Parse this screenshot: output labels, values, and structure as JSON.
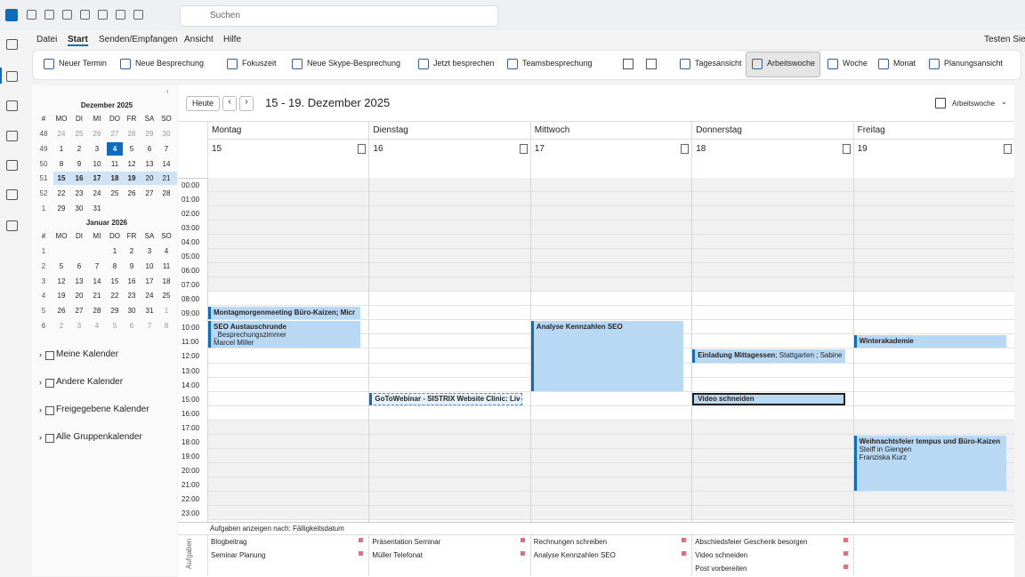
{
  "search": "Suchen",
  "menu": {
    "items": [
      "Datei",
      "Start",
      "Senden/Empfangen",
      "Ansicht",
      "Hilfe"
    ],
    "promo": "Testen Sie d"
  },
  "ribbon": {
    "buttons": [
      "Neuer Termin",
      "Neue Besprechung",
      "Fokuszeit",
      "Neue Skype-Besprechung",
      "Jetzt besprechen",
      "Teamsbesprechung",
      "Tagesansicht",
      "Arbeitswoche",
      "Woche",
      "Monat",
      "Planungsansicht"
    ]
  },
  "mini_calendar": {
    "months": [
      {
        "title": "Dezember 2025",
        "header": [
          "#",
          "MO",
          "DI",
          "MI",
          "DO",
          "FR",
          "SA",
          "SO"
        ],
        "weeks": [
          [
            "48",
            "24",
            "25",
            "26",
            "27",
            "28",
            "29",
            "30"
          ],
          [
            "49",
            "1",
            "2",
            "3",
            "4",
            "5",
            "6",
            "7"
          ],
          [
            "50",
            "8",
            "9",
            "10",
            "11",
            "12",
            "13",
            "14"
          ],
          [
            "51",
            "15",
            "16",
            "17",
            "18",
            "19",
            "20",
            "21"
          ],
          [
            "52",
            "22",
            "23",
            "24",
            "25",
            "26",
            "27",
            "28"
          ],
          [
            "1",
            "29",
            "30",
            "31",
            null,
            null,
            null,
            null
          ]
        ]
      },
      {
        "title": "Januar 2026",
        "header": [
          "#",
          "MO",
          "DI",
          "MI",
          "DO",
          "FR",
          "SA",
          "SO"
        ],
        "weeks": [
          [
            "1",
            null,
            null,
            null,
            "1",
            "2",
            "3",
            "4"
          ],
          [
            "2",
            "5",
            "6",
            "7",
            "8",
            "9",
            "10",
            "11"
          ],
          [
            "3",
            "12",
            "13",
            "14",
            "15",
            "16",
            "17",
            "18"
          ],
          [
            "4",
            "19",
            "20",
            "21",
            "22",
            "23",
            "24",
            "25"
          ],
          [
            "5",
            "26",
            "27",
            "28",
            "29",
            "30",
            "31",
            "1"
          ],
          [
            "6",
            "2",
            "3",
            "4",
            "5",
            "6",
            "7",
            "8"
          ]
        ]
      }
    ]
  },
  "folders": [
    "Meine Kalender",
    "Andere Kalender",
    "Freigegebene Kalender",
    "Alle Gruppenkalender"
  ],
  "calendar": {
    "today_button": "Heute",
    "range": "15 - 19. Dezember 2025",
    "view": "Arbeitswoche",
    "days": [
      {
        "name": "Montag",
        "date": "15"
      },
      {
        "name": "Dienstag",
        "date": "16"
      },
      {
        "name": "Mittwoch",
        "date": "17"
      },
      {
        "name": "Donnerstag",
        "date": "18"
      },
      {
        "name": "Freitag",
        "date": "19"
      }
    ],
    "hours": [
      "00:00",
      "01:00",
      "02:00",
      "03:00",
      "04:00",
      "05:00",
      "06:00",
      "07:00",
      "08:00",
      "09:00",
      "10:00",
      "11:00",
      "12:00",
      "13:00",
      "14:00",
      "15:00",
      "16:00",
      "17:00",
      "18:00",
      "19:00",
      "20:00",
      "21:00",
      "22:00",
      "23:00"
    ],
    "events": [
      {
        "day": 0,
        "start": 9,
        "end": 10,
        "title": "Montagmorgenmeeting Büro-Kaizen; Micr"
      },
      {
        "day": 0,
        "start": 10,
        "end": 12,
        "title": "SEO Austauschrunde",
        "lines": [
          "_Besprechungszimmer",
          "Marcel Miller"
        ]
      },
      {
        "day": 1,
        "start": 15,
        "end": 16,
        "title": "GoToWebinar - SISTRIX Website Clinic: Live-S",
        "tentative": true
      },
      {
        "day": 2,
        "start": 10,
        "end": 15,
        "title": "Analyse Kennzahlen SEO"
      },
      {
        "day": 3,
        "start": 12,
        "end": 13,
        "title": "Einladung Mittagessen",
        "detail": " ; Stattgarten ; Sabine"
      },
      {
        "day": 3,
        "start": 15,
        "end": 16,
        "title": "Video schneiden",
        "selected": true
      },
      {
        "day": 4,
        "start": 11,
        "end": 12,
        "title": "Winterakademie"
      },
      {
        "day": 4,
        "start": 18,
        "end": 22,
        "title": "Weihnachtsfeier tempus und Büro-Kaizen",
        "lines": [
          "Steiff in Giengen",
          "Franziska Kurz"
        ]
      }
    ]
  },
  "tasks": {
    "header": "Aufgaben anzeigen nach: Fälligkeitsdatum",
    "side_label": "Aufgaben",
    "columns": [
      [
        "Blogbeitrag",
        "Seminar Planung"
      ],
      [
        "Präsentation Seminar",
        "Müller Telefonat"
      ],
      [
        "Rechnungen schreiben",
        "Analyse Kennzahlen SEO"
      ],
      [
        "Abschiedsfeier Geschenk besorgen",
        "Video schneiden",
        "Post vorbereiten"
      ],
      []
    ]
  }
}
